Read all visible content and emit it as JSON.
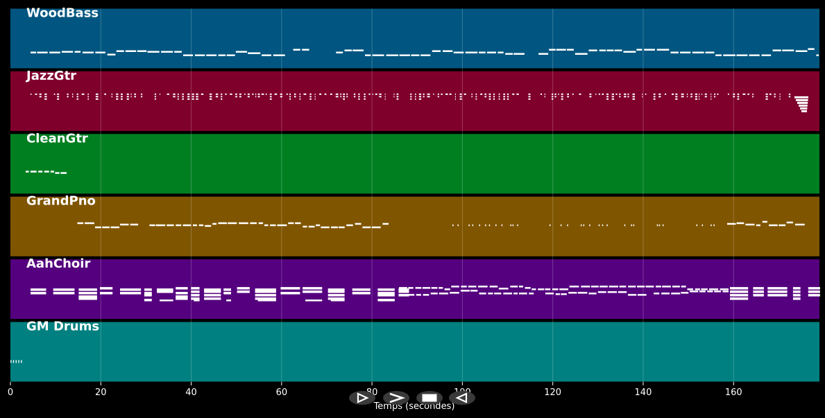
{
  "tracks": [
    {
      "name": "WoodBass",
      "color": "#005680",
      "style": "mono-sparse"
    },
    {
      "name": "JazzGtr",
      "color": "#80002c",
      "style": "chords"
    },
    {
      "name": "CleanGtr",
      "color": "#007f21",
      "style": "intro-only"
    },
    {
      "name": "GrandPno",
      "color": "#805500",
      "style": "mono-with-gap"
    },
    {
      "name": "AahChoir",
      "color": "#55007f",
      "style": "block-chords"
    },
    {
      "name": "GM Drums",
      "color": "#008080",
      "style": "intro-hits"
    }
  ],
  "axis": {
    "title": "Temps (secondes)",
    "min": 0,
    "max": 179,
    "ticks": [
      "0",
      "20",
      "40",
      "60",
      "80",
      "100",
      "120",
      "140",
      "160"
    ],
    "grid": true
  },
  "controls": [
    {
      "name": "play-icon",
      "icon": "play"
    },
    {
      "name": "fast-forward-icon",
      "icon": "forward"
    },
    {
      "name": "stop-icon",
      "icon": "stop"
    },
    {
      "name": "rewind-icon",
      "icon": "rewind"
    }
  ],
  "note_color": "#ffffff"
}
